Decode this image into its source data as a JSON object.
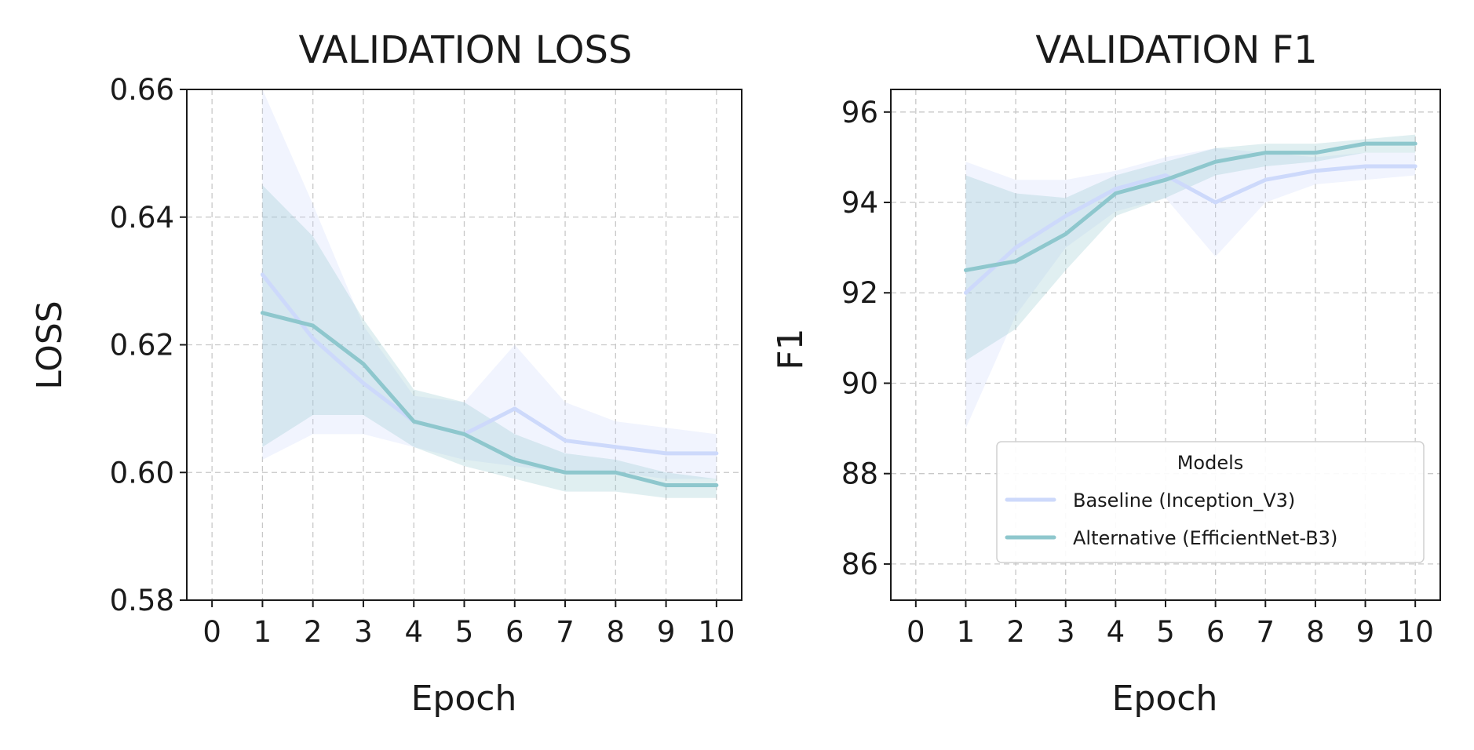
{
  "chart_data": [
    {
      "type": "line",
      "title": "VALIDATION LOSS",
      "xlabel": "Epoch",
      "ylabel": "LOSS",
      "xlim": [
        -0.5,
        10.5
      ],
      "ylim": [
        0.58,
        0.66
      ],
      "xticks": [
        0,
        1,
        2,
        3,
        4,
        5,
        6,
        7,
        8,
        9,
        10
      ],
      "yticks": [
        0.58,
        0.6,
        0.62,
        0.64,
        0.66
      ],
      "ytick_labels": [
        "0.58",
        "0.60",
        "0.62",
        "0.64",
        "0.66"
      ],
      "grid": true,
      "x": [
        1,
        2,
        3,
        4,
        5,
        6,
        7,
        8,
        9,
        10
      ],
      "series": [
        {
          "name": "Baseline (Inception_V3)",
          "color": "#cdd9fb",
          "values": [
            0.631,
            0.621,
            0.614,
            0.608,
            0.606,
            0.61,
            0.605,
            0.604,
            0.603,
            0.603
          ],
          "lower": [
            0.602,
            0.606,
            0.606,
            0.604,
            0.602,
            0.601,
            0.6,
            0.6,
            0.599,
            0.599
          ],
          "upper": [
            0.66,
            0.642,
            0.623,
            0.612,
            0.611,
            0.62,
            0.611,
            0.608,
            0.607,
            0.606
          ]
        },
        {
          "name": "Alternative (EfficientNet-B3)",
          "color": "#8ec7cd",
          "values": [
            0.625,
            0.623,
            0.617,
            0.608,
            0.606,
            0.602,
            0.6,
            0.6,
            0.598,
            0.598
          ],
          "lower": [
            0.604,
            0.609,
            0.609,
            0.604,
            0.601,
            0.599,
            0.597,
            0.597,
            0.596,
            0.596
          ],
          "upper": [
            0.645,
            0.637,
            0.624,
            0.613,
            0.611,
            0.606,
            0.603,
            0.602,
            0.6,
            0.599
          ]
        }
      ]
    },
    {
      "type": "line",
      "title": "VALIDATION F1",
      "xlabel": "Epoch",
      "ylabel": "F1",
      "xlim": [
        -0.5,
        10.5
      ],
      "ylim": [
        85.2,
        96.5
      ],
      "xticks": [
        0,
        1,
        2,
        3,
        4,
        5,
        6,
        7,
        8,
        9,
        10
      ],
      "yticks": [
        86,
        88,
        90,
        92,
        94,
        96
      ],
      "ytick_labels": [
        "86",
        "88",
        "90",
        "92",
        "94",
        "96"
      ],
      "grid": true,
      "legend": {
        "title": "Models",
        "position": "lower-right"
      },
      "x": [
        1,
        2,
        3,
        4,
        5,
        6,
        7,
        8,
        9,
        10
      ],
      "series": [
        {
          "name": "Baseline (Inception_V3)",
          "color": "#cdd9fb",
          "values": [
            92.0,
            93.0,
            93.7,
            94.3,
            94.6,
            94.0,
            94.5,
            94.7,
            94.8,
            94.8
          ],
          "lower": [
            89.0,
            91.5,
            93.0,
            93.8,
            94.1,
            92.8,
            94.0,
            94.4,
            94.5,
            94.6
          ],
          "upper": [
            94.9,
            94.5,
            94.5,
            94.7,
            95.0,
            95.2,
            95.1,
            95.0,
            95.1,
            95.1
          ]
        },
        {
          "name": "Alternative (EfficientNet-B3)",
          "color": "#8ec7cd",
          "values": [
            92.5,
            92.7,
            93.3,
            94.2,
            94.5,
            94.9,
            95.1,
            95.1,
            95.3,
            95.3
          ],
          "lower": [
            90.5,
            91.2,
            92.5,
            93.7,
            94.1,
            94.6,
            94.8,
            94.9,
            95.1,
            95.1
          ],
          "upper": [
            94.6,
            94.2,
            94.1,
            94.6,
            94.9,
            95.2,
            95.3,
            95.3,
            95.4,
            95.5
          ]
        }
      ]
    }
  ]
}
